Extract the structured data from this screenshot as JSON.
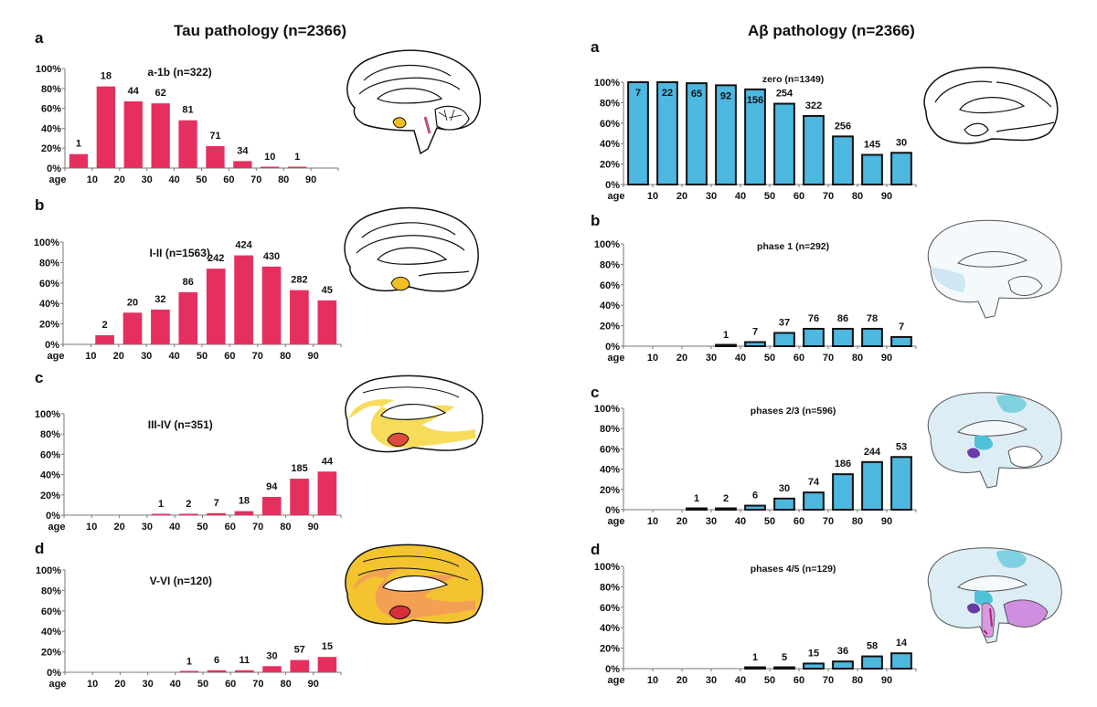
{
  "left_title": "Tau pathology (n=2366)",
  "right_title": "Aβ pathology (n=2366)",
  "colors": {
    "tau_bar": "#e5305f",
    "abeta_bar": "#4db8e0",
    "abeta_outline": "#111111"
  },
  "chart_data": [
    {
      "id": "tau-a",
      "panel": "a",
      "type": "bar",
      "title": "a-1b (n=322)",
      "xlabel": "age",
      "ylabel": "",
      "categories": [
        "0-9",
        "10-19",
        "20-29",
        "30-39",
        "40-49",
        "50-59",
        "60-69",
        "70-79",
        "80-89",
        "90+"
      ],
      "x_ticks": [
        "10",
        "20",
        "30",
        "40",
        "50",
        "60",
        "70",
        "80",
        "90"
      ],
      "y_ticks": [
        "0%",
        "20%",
        "40%",
        "60%",
        "80%",
        "100%"
      ],
      "ylim": [
        0,
        100
      ],
      "values": [
        14,
        82,
        67,
        65,
        48,
        22,
        7,
        1,
        1,
        0
      ],
      "labels": [
        "1",
        "18",
        "44",
        "62",
        "81",
        "71",
        "34",
        "10",
        "1",
        ""
      ],
      "grid": false,
      "legend": "none"
    },
    {
      "id": "tau-b",
      "panel": "b",
      "type": "bar",
      "title": "I-II (n=1563)",
      "xlabel": "age",
      "ylabel": "",
      "categories": [
        "0-9",
        "10-19",
        "20-29",
        "30-39",
        "40-49",
        "50-59",
        "60-69",
        "70-79",
        "80-89",
        "90+"
      ],
      "x_ticks": [
        "10",
        "20",
        "30",
        "40",
        "50",
        "60",
        "70",
        "80",
        "90"
      ],
      "y_ticks": [
        "0%",
        "20%",
        "40%",
        "60%",
        "80%",
        "100%"
      ],
      "ylim": [
        0,
        100
      ],
      "values": [
        0,
        9,
        31,
        34,
        51,
        74,
        87,
        76,
        53,
        43
      ],
      "labels": [
        "",
        "2",
        "20",
        "32",
        "86",
        "242",
        "424",
        "430",
        "282",
        "45"
      ],
      "grid": false,
      "legend": "none"
    },
    {
      "id": "tau-c",
      "panel": "c",
      "type": "bar",
      "title": "III-IV (n=351)",
      "xlabel": "age",
      "ylabel": "",
      "categories": [
        "0-9",
        "10-19",
        "20-29",
        "30-39",
        "40-49",
        "50-59",
        "60-69",
        "70-79",
        "80-89",
        "90+"
      ],
      "x_ticks": [
        "10",
        "20",
        "30",
        "40",
        "50",
        "60",
        "70",
        "80",
        "90"
      ],
      "y_ticks": [
        "0%",
        "20%",
        "40%",
        "60%",
        "80%",
        "100%"
      ],
      "ylim": [
        0,
        100
      ],
      "values": [
        0,
        0,
        0,
        1,
        1,
        2,
        4,
        18,
        36,
        43
      ],
      "labels": [
        "",
        "",
        "",
        "1",
        "2",
        "7",
        "18",
        "94",
        "185",
        "44"
      ],
      "grid": false,
      "legend": "none"
    },
    {
      "id": "tau-d",
      "panel": "d",
      "type": "bar",
      "title": "V-VI (n=120)",
      "xlabel": "age",
      "ylabel": "",
      "categories": [
        "0-9",
        "10-19",
        "20-29",
        "30-39",
        "40-49",
        "50-59",
        "60-69",
        "70-79",
        "80-89",
        "90+"
      ],
      "x_ticks": [
        "10",
        "20",
        "30",
        "40",
        "50",
        "60",
        "70",
        "80",
        "90"
      ],
      "y_ticks": [
        "0%",
        "20%",
        "40%",
        "60%",
        "80%",
        "100%"
      ],
      "ylim": [
        0,
        100
      ],
      "values": [
        0,
        0,
        0,
        0,
        0.5,
        2,
        2,
        6,
        12,
        15
      ],
      "labels": [
        "",
        "",
        "",
        "",
        "1",
        "6",
        "11",
        "30",
        "57",
        "15"
      ],
      "grid": false,
      "legend": "none"
    },
    {
      "id": "abeta-a",
      "panel": "a",
      "type": "bar",
      "title": "zero (n=1349)",
      "xlabel": "age",
      "ylabel": "",
      "categories": [
        "0-9",
        "10-19",
        "20-29",
        "30-39",
        "40-49",
        "50-59",
        "60-69",
        "70-79",
        "80-89",
        "90+"
      ],
      "x_ticks": [
        "10",
        "20",
        "30",
        "40",
        "50",
        "60",
        "70",
        "80",
        "90"
      ],
      "y_ticks": [
        "0%",
        "20%",
        "40%",
        "60%",
        "80%",
        "100%"
      ],
      "ylim": [
        0,
        100
      ],
      "values": [
        100,
        100,
        99,
        97,
        93,
        79,
        67,
        47,
        29,
        31
      ],
      "labels": [
        "7",
        "22",
        "65",
        "92",
        "156",
        "254",
        "322",
        "256",
        "145",
        "30"
      ],
      "labels_inside": [
        true,
        true,
        true,
        true,
        true,
        false,
        false,
        false,
        false,
        false
      ],
      "grid": false,
      "legend": "none"
    },
    {
      "id": "abeta-b",
      "panel": "b",
      "type": "bar",
      "title": "phase 1 (n=292)",
      "xlabel": "age",
      "ylabel": "",
      "categories": [
        "0-9",
        "10-19",
        "20-29",
        "30-39",
        "40-49",
        "50-59",
        "60-69",
        "70-79",
        "80-89",
        "90+"
      ],
      "x_ticks": [
        "10",
        "20",
        "30",
        "40",
        "50",
        "60",
        "70",
        "80",
        "90"
      ],
      "y_ticks": [
        "0%",
        "20%",
        "40%",
        "60%",
        "80%",
        "100%"
      ],
      "ylim": [
        0,
        100
      ],
      "values": [
        0,
        0,
        0,
        1,
        4,
        13,
        17,
        17,
        17,
        9
      ],
      "labels": [
        "",
        "",
        "",
        "1",
        "7",
        "37",
        "76",
        "86",
        "78",
        "7"
      ],
      "grid": false,
      "legend": "none"
    },
    {
      "id": "abeta-c",
      "panel": "c",
      "type": "bar",
      "title": "phases 2/3 (n=596)",
      "xlabel": "age",
      "ylabel": "",
      "categories": [
        "0-9",
        "10-19",
        "20-29",
        "30-39",
        "40-49",
        "50-59",
        "60-69",
        "70-79",
        "80-89",
        "90+"
      ],
      "x_ticks": [
        "10",
        "20",
        "30",
        "40",
        "50",
        "60",
        "70",
        "80",
        "90"
      ],
      "y_ticks": [
        "0%",
        "20%",
        "40%",
        "60%",
        "80%",
        "100%"
      ],
      "ylim": [
        0,
        100
      ],
      "values": [
        0,
        0,
        1,
        1,
        4,
        11,
        17,
        35,
        47,
        52
      ],
      "labels": [
        "",
        "",
        "1",
        "2",
        "6",
        "30",
        "74",
        "186",
        "244",
        "53"
      ],
      "grid": false,
      "legend": "none"
    },
    {
      "id": "abeta-d",
      "panel": "d",
      "type": "bar",
      "title": "phases 4/5  (n=129)",
      "xlabel": "age",
      "ylabel": "",
      "categories": [
        "0-9",
        "10-19",
        "20-29",
        "30-39",
        "40-49",
        "50-59",
        "60-69",
        "70-79",
        "80-89",
        "90+"
      ],
      "x_ticks": [
        "10",
        "20",
        "30",
        "40",
        "50",
        "60",
        "70",
        "80",
        "90"
      ],
      "y_ticks": [
        "0%",
        "20%",
        "40%",
        "60%",
        "80%",
        "100%"
      ],
      "ylim": [
        0,
        100
      ],
      "values": [
        0,
        0,
        0,
        0,
        1,
        1,
        5,
        7,
        12,
        15
      ],
      "labels": [
        "",
        "",
        "",
        "",
        "1",
        "5",
        "15",
        "36",
        "58",
        "14"
      ],
      "grid": false,
      "legend": "none"
    }
  ],
  "brains": [
    {
      "id": "tau-a",
      "desc": "brain with yellow entorhinal and pink locus coeruleus highlight"
    },
    {
      "id": "tau-b",
      "desc": "brain with yellow entorhinal highlight"
    },
    {
      "id": "tau-c",
      "desc": "brain with yellow limbic and red hippocampus"
    },
    {
      "id": "tau-d",
      "desc": "brain fully yellow/orange with red hippocampus"
    },
    {
      "id": "abeta-a",
      "desc": "uncolored brain outline"
    },
    {
      "id": "abeta-b",
      "desc": "pale blue neocortex"
    },
    {
      "id": "abeta-c",
      "desc": "blue neocortex, cyan regions, purple hippocampus"
    },
    {
      "id": "abeta-d",
      "desc": "blue neocortex, cyan, purple and lilac brainstem/cerebellum"
    }
  ]
}
